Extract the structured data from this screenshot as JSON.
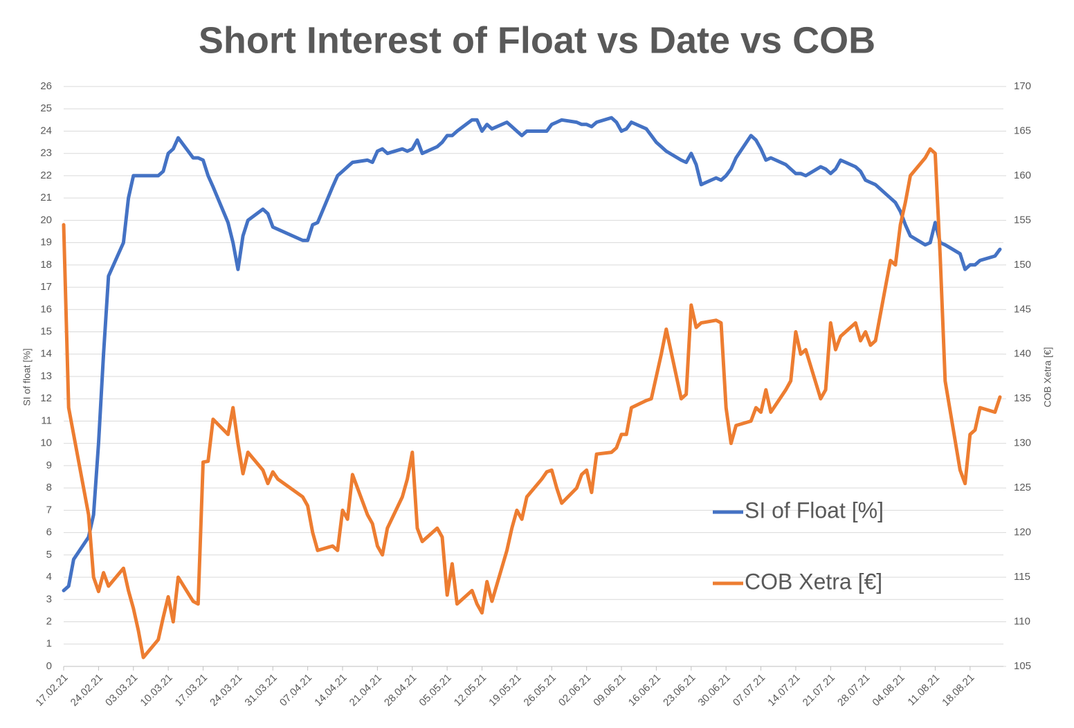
{
  "chart_data": {
    "type": "line",
    "title": "Short Interest of Float vs Date vs COB",
    "y_label": "SI of float [%]",
    "y2_label": "COB Xetra [€]",
    "grid": true,
    "legend": "right",
    "x": [
      "17.02.21",
      "18.02.21",
      "19.02.21",
      "22.02.21",
      "23.02.21",
      "24.02.21",
      "25.02.21",
      "26.02.21",
      "01.03.21",
      "02.03.21",
      "03.03.21",
      "04.03.21",
      "05.03.21",
      "08.03.21",
      "09.03.21",
      "10.03.21",
      "11.03.21",
      "12.03.21",
      "15.03.21",
      "16.03.21",
      "17.03.21",
      "18.03.21",
      "19.03.21",
      "22.03.21",
      "23.03.21",
      "24.03.21",
      "25.03.21",
      "26.03.21",
      "29.03.21",
      "30.03.21",
      "31.03.21",
      "01.04.21",
      "06.04.21",
      "07.04.21",
      "08.04.21",
      "09.04.21",
      "12.04.21",
      "13.04.21",
      "14.04.21",
      "15.04.21",
      "16.04.21",
      "19.04.21",
      "20.04.21",
      "21.04.21",
      "22.04.21",
      "23.04.21",
      "26.04.21",
      "27.04.21",
      "28.04.21",
      "29.04.21",
      "30.04.21",
      "03.05.21",
      "04.05.21",
      "05.05.21",
      "06.05.21",
      "07.05.21",
      "10.05.21",
      "11.05.21",
      "12.05.21",
      "13.05.21",
      "14.05.21",
      "17.05.21",
      "18.05.21",
      "19.05.21",
      "20.05.21",
      "21.05.21",
      "24.05.21",
      "25.05.21",
      "26.05.21",
      "27.05.21",
      "28.05.21",
      "31.05.21",
      "01.06.21",
      "02.06.21",
      "03.06.21",
      "04.06.21",
      "07.06.21",
      "08.06.21",
      "09.06.21",
      "10.06.21",
      "11.06.21",
      "14.06.21",
      "15.06.21",
      "16.06.21",
      "17.06.21",
      "18.06.21",
      "21.06.21",
      "22.06.21",
      "23.06.21",
      "24.06.21",
      "25.06.21",
      "28.06.21",
      "29.06.21",
      "30.06.21",
      "01.07.21",
      "02.07.21",
      "05.07.21",
      "06.07.21",
      "07.07.21",
      "08.07.21",
      "09.07.21",
      "12.07.21",
      "13.07.21",
      "14.07.21",
      "15.07.21",
      "16.07.21",
      "19.07.21",
      "20.07.21",
      "21.07.21",
      "22.07.21",
      "23.07.21",
      "26.07.21",
      "27.07.21",
      "28.07.21",
      "29.07.21",
      "30.07.21",
      "02.08.21",
      "03.08.21",
      "04.08.21",
      "05.08.21",
      "06.08.21",
      "09.08.21",
      "10.08.21",
      "11.08.21",
      "12.08.21",
      "13.08.21",
      "16.08.21",
      "17.08.21",
      "18.08.21",
      "19.08.21",
      "20.08.21",
      "23.08.21",
      "24.08.21"
    ],
    "xlim": [
      "17.02.21",
      "24.08.21"
    ],
    "xticks": [
      "17.02.21",
      "24.02.21",
      "03.03.21",
      "10.03.21",
      "17.03.21",
      "24.03.21",
      "31.03.21",
      "07.04.21",
      "14.04.21",
      "21.04.21",
      "28.04.21",
      "05.05.21",
      "12.05.21",
      "19.05.21",
      "26.05.21",
      "02.06.21",
      "09.06.21",
      "16.06.21",
      "23.06.21",
      "30.06.21",
      "07.07.21",
      "14.07.21",
      "21.07.21",
      "28.07.21",
      "04.08.21",
      "11.08.21",
      "18.08.21"
    ],
    "ylim": [
      0,
      26
    ],
    "yticks": [
      0,
      1,
      2,
      3,
      4,
      5,
      6,
      7,
      8,
      9,
      10,
      11,
      12,
      13,
      14,
      15,
      16,
      17,
      18,
      19,
      20,
      21,
      22,
      23,
      24,
      25,
      26
    ],
    "y2lim": [
      105,
      170
    ],
    "y2ticks": [
      105,
      110,
      115,
      120,
      125,
      130,
      135,
      140,
      145,
      150,
      155,
      160,
      165,
      170
    ],
    "series": [
      {
        "name": "SI of Float [%]",
        "color": "#4472c4",
        "values": [
          3.4,
          3.6,
          4.8,
          5.8,
          6.8,
          10,
          14,
          17.5,
          19,
          21,
          22,
          22,
          22,
          22,
          22.2,
          23,
          23.2,
          23.7,
          22.8,
          22.8,
          22.7,
          22,
          21.5,
          19.9,
          19,
          17.8,
          19.3,
          20,
          20.5,
          20.3,
          19.7,
          19.6,
          19.1,
          19.1,
          19.8,
          19.9,
          21.5,
          22,
          22.2,
          22.4,
          22.6,
          22.7,
          22.6,
          23.1,
          23.2,
          23,
          23.2,
          23.1,
          23.2,
          23.6,
          23,
          23.3,
          23.5,
          23.8,
          23.8,
          24,
          24.5,
          24.5,
          24,
          24.3,
          24.1,
          24.4,
          24.2,
          24,
          23.8,
          24,
          24,
          24,
          24.3,
          24.4,
          24.5,
          24.4,
          24.3,
          24.3,
          24.2,
          24.4,
          24.6,
          24.4,
          24,
          24.1,
          24.4,
          24.1,
          23.8,
          23.5,
          23.3,
          23.1,
          22.7,
          22.6,
          23,
          22.5,
          21.6,
          21.9,
          21.8,
          22,
          22.3,
          22.8,
          23.8,
          23.6,
          23.2,
          22.7,
          22.8,
          22.5,
          22.3,
          22.1,
          22.1,
          22,
          22.4,
          22.3,
          22.1,
          22.3,
          22.7,
          22.4,
          22.2,
          21.8,
          21.7,
          21.6,
          21,
          20.8,
          20.4,
          19.8,
          19.3,
          18.9,
          19,
          19.9,
          19,
          18.9,
          18.5,
          17.8,
          18,
          18,
          18.2,
          18.4,
          18.7
        ]
      },
      {
        "name": "COB Xetra [€]",
        "color": "#ed7d31",
        "axis": "y2",
        "values": [
          154.5,
          134,
          131,
          122,
          115,
          113.4,
          115.5,
          114,
          116,
          113.5,
          111.5,
          109,
          106,
          108,
          110.5,
          112.8,
          110,
          115,
          112.3,
          112,
          127.9,
          128,
          132.7,
          131,
          134,
          130,
          126.6,
          129,
          127,
          125.5,
          126.8,
          126,
          124,
          123,
          120,
          118,
          118.5,
          118,
          122.5,
          121.5,
          126.5,
          122,
          121,
          118.5,
          117.5,
          120.5,
          124,
          126,
          129,
          120.5,
          119,
          120.5,
          119.5,
          113,
          116.5,
          112,
          113.5,
          112,
          111,
          114.5,
          112.3,
          118,
          120.5,
          122.5,
          121.5,
          124,
          126,
          126.8,
          127,
          125,
          123.3,
          125,
          126.5,
          127,
          124.5,
          128.8,
          129,
          129.5,
          131,
          131,
          134,
          134.8,
          135,
          137.5,
          140,
          142.8,
          135,
          135.5,
          145.5,
          143,
          143.5,
          143.8,
          143.5,
          134,
          130,
          132,
          132.5,
          134,
          133.5,
          136,
          133.5,
          136,
          137,
          142.5,
          140,
          140.5,
          135,
          136,
          143.5,
          140.5,
          142,
          143.5,
          141.5,
          142.5,
          141,
          141.5,
          150.5,
          150,
          154.5,
          157,
          160,
          162,
          163,
          162.5,
          151,
          137,
          127,
          125.5,
          131,
          131.5,
          134,
          133.5,
          135.2
        ]
      }
    ]
  }
}
